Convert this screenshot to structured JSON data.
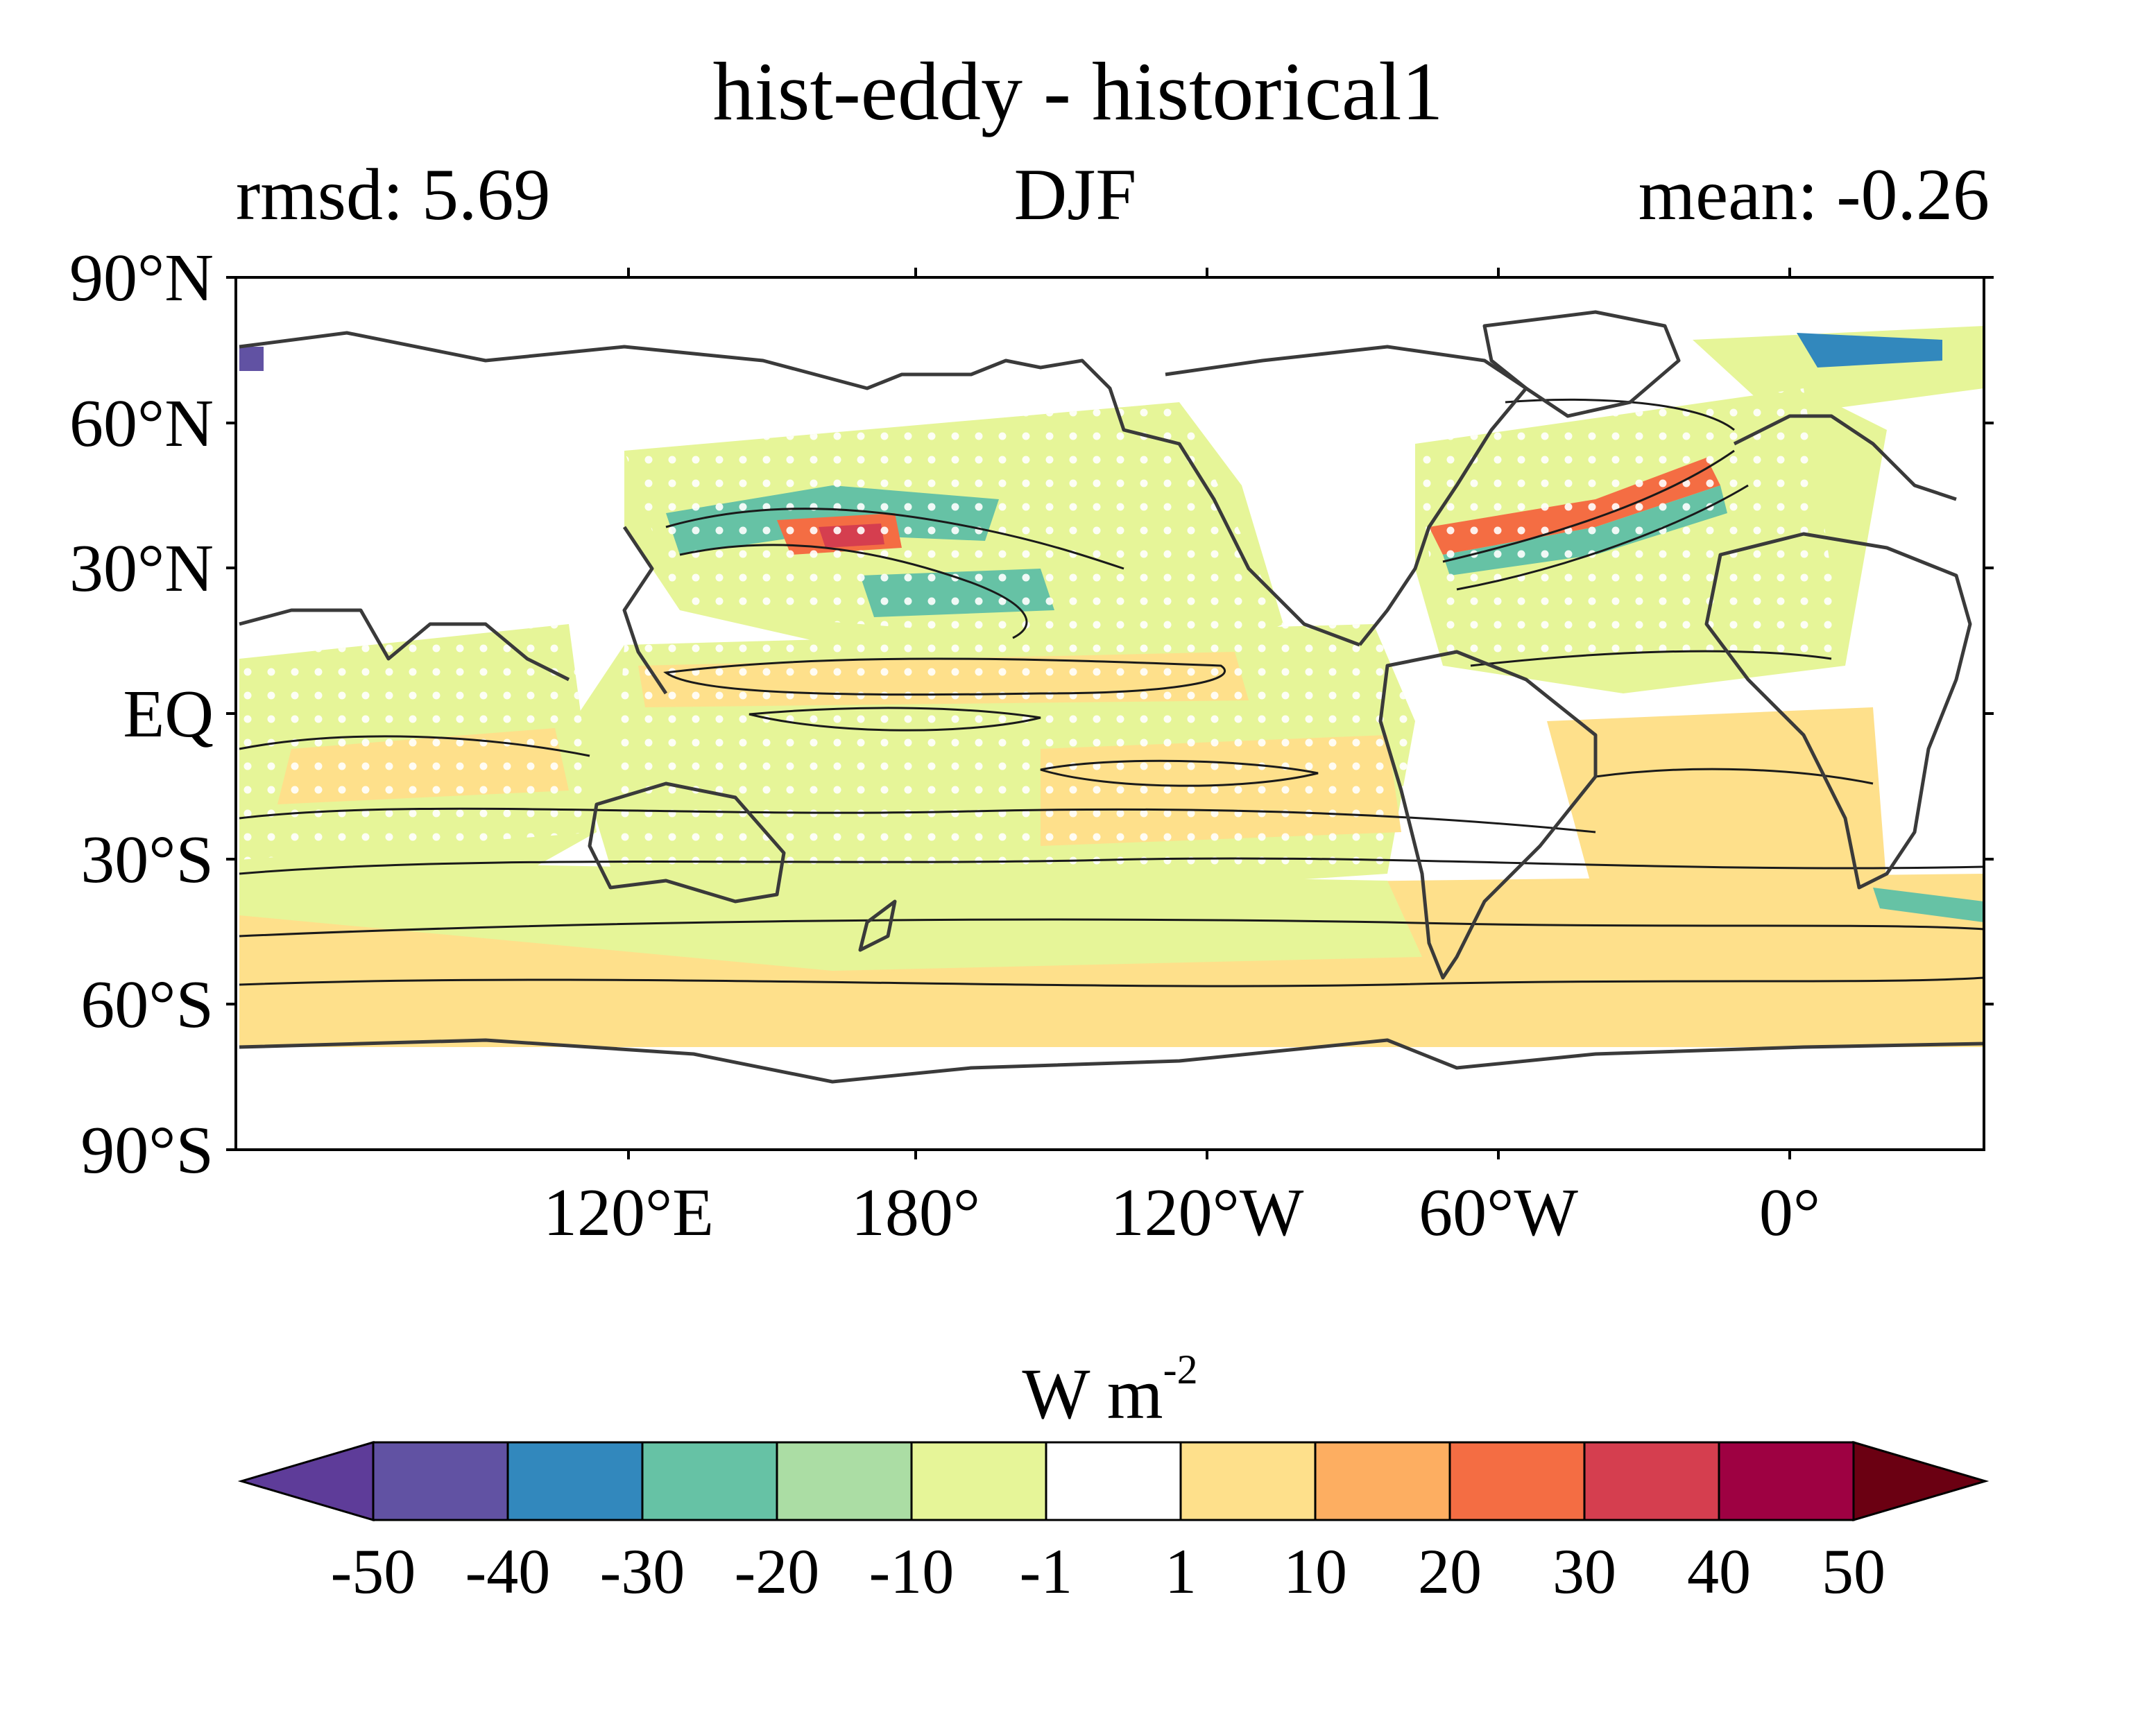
{
  "title": "hist-eddy - historical1",
  "subtitle_left": "rmsd: 5.69",
  "subtitle_center": "DJF",
  "subtitle_right": "mean: -0.26",
  "lat_labels": [
    "90°N",
    "60°N",
    "30°N",
    "EQ",
    "30°S",
    "60°S",
    "90°S"
  ],
  "lon_labels": [
    "120°E",
    "180°",
    "120°W",
    "60°W",
    "0°"
  ],
  "units_base": "W m",
  "units_exp": "-2",
  "colorbar": {
    "levels": [
      "-50",
      "-40",
      "-30",
      "-20",
      "-10",
      "-1",
      "1",
      "10",
      "20",
      "30",
      "40",
      "50"
    ],
    "colors": [
      "#5e3c99",
      "#6152a3",
      "#3288bd",
      "#66c2a5",
      "#abdda4",
      "#e6f598",
      "#ffffff",
      "#fee08b",
      "#fdae61",
      "#f46d43",
      "#d53e4f",
      "#9e0142",
      "#6b0012"
    ]
  },
  "colors": {
    "land_outline": "#3a3a3a",
    "contour": "#1a1a1a",
    "stipple": "#ffffff"
  }
}
